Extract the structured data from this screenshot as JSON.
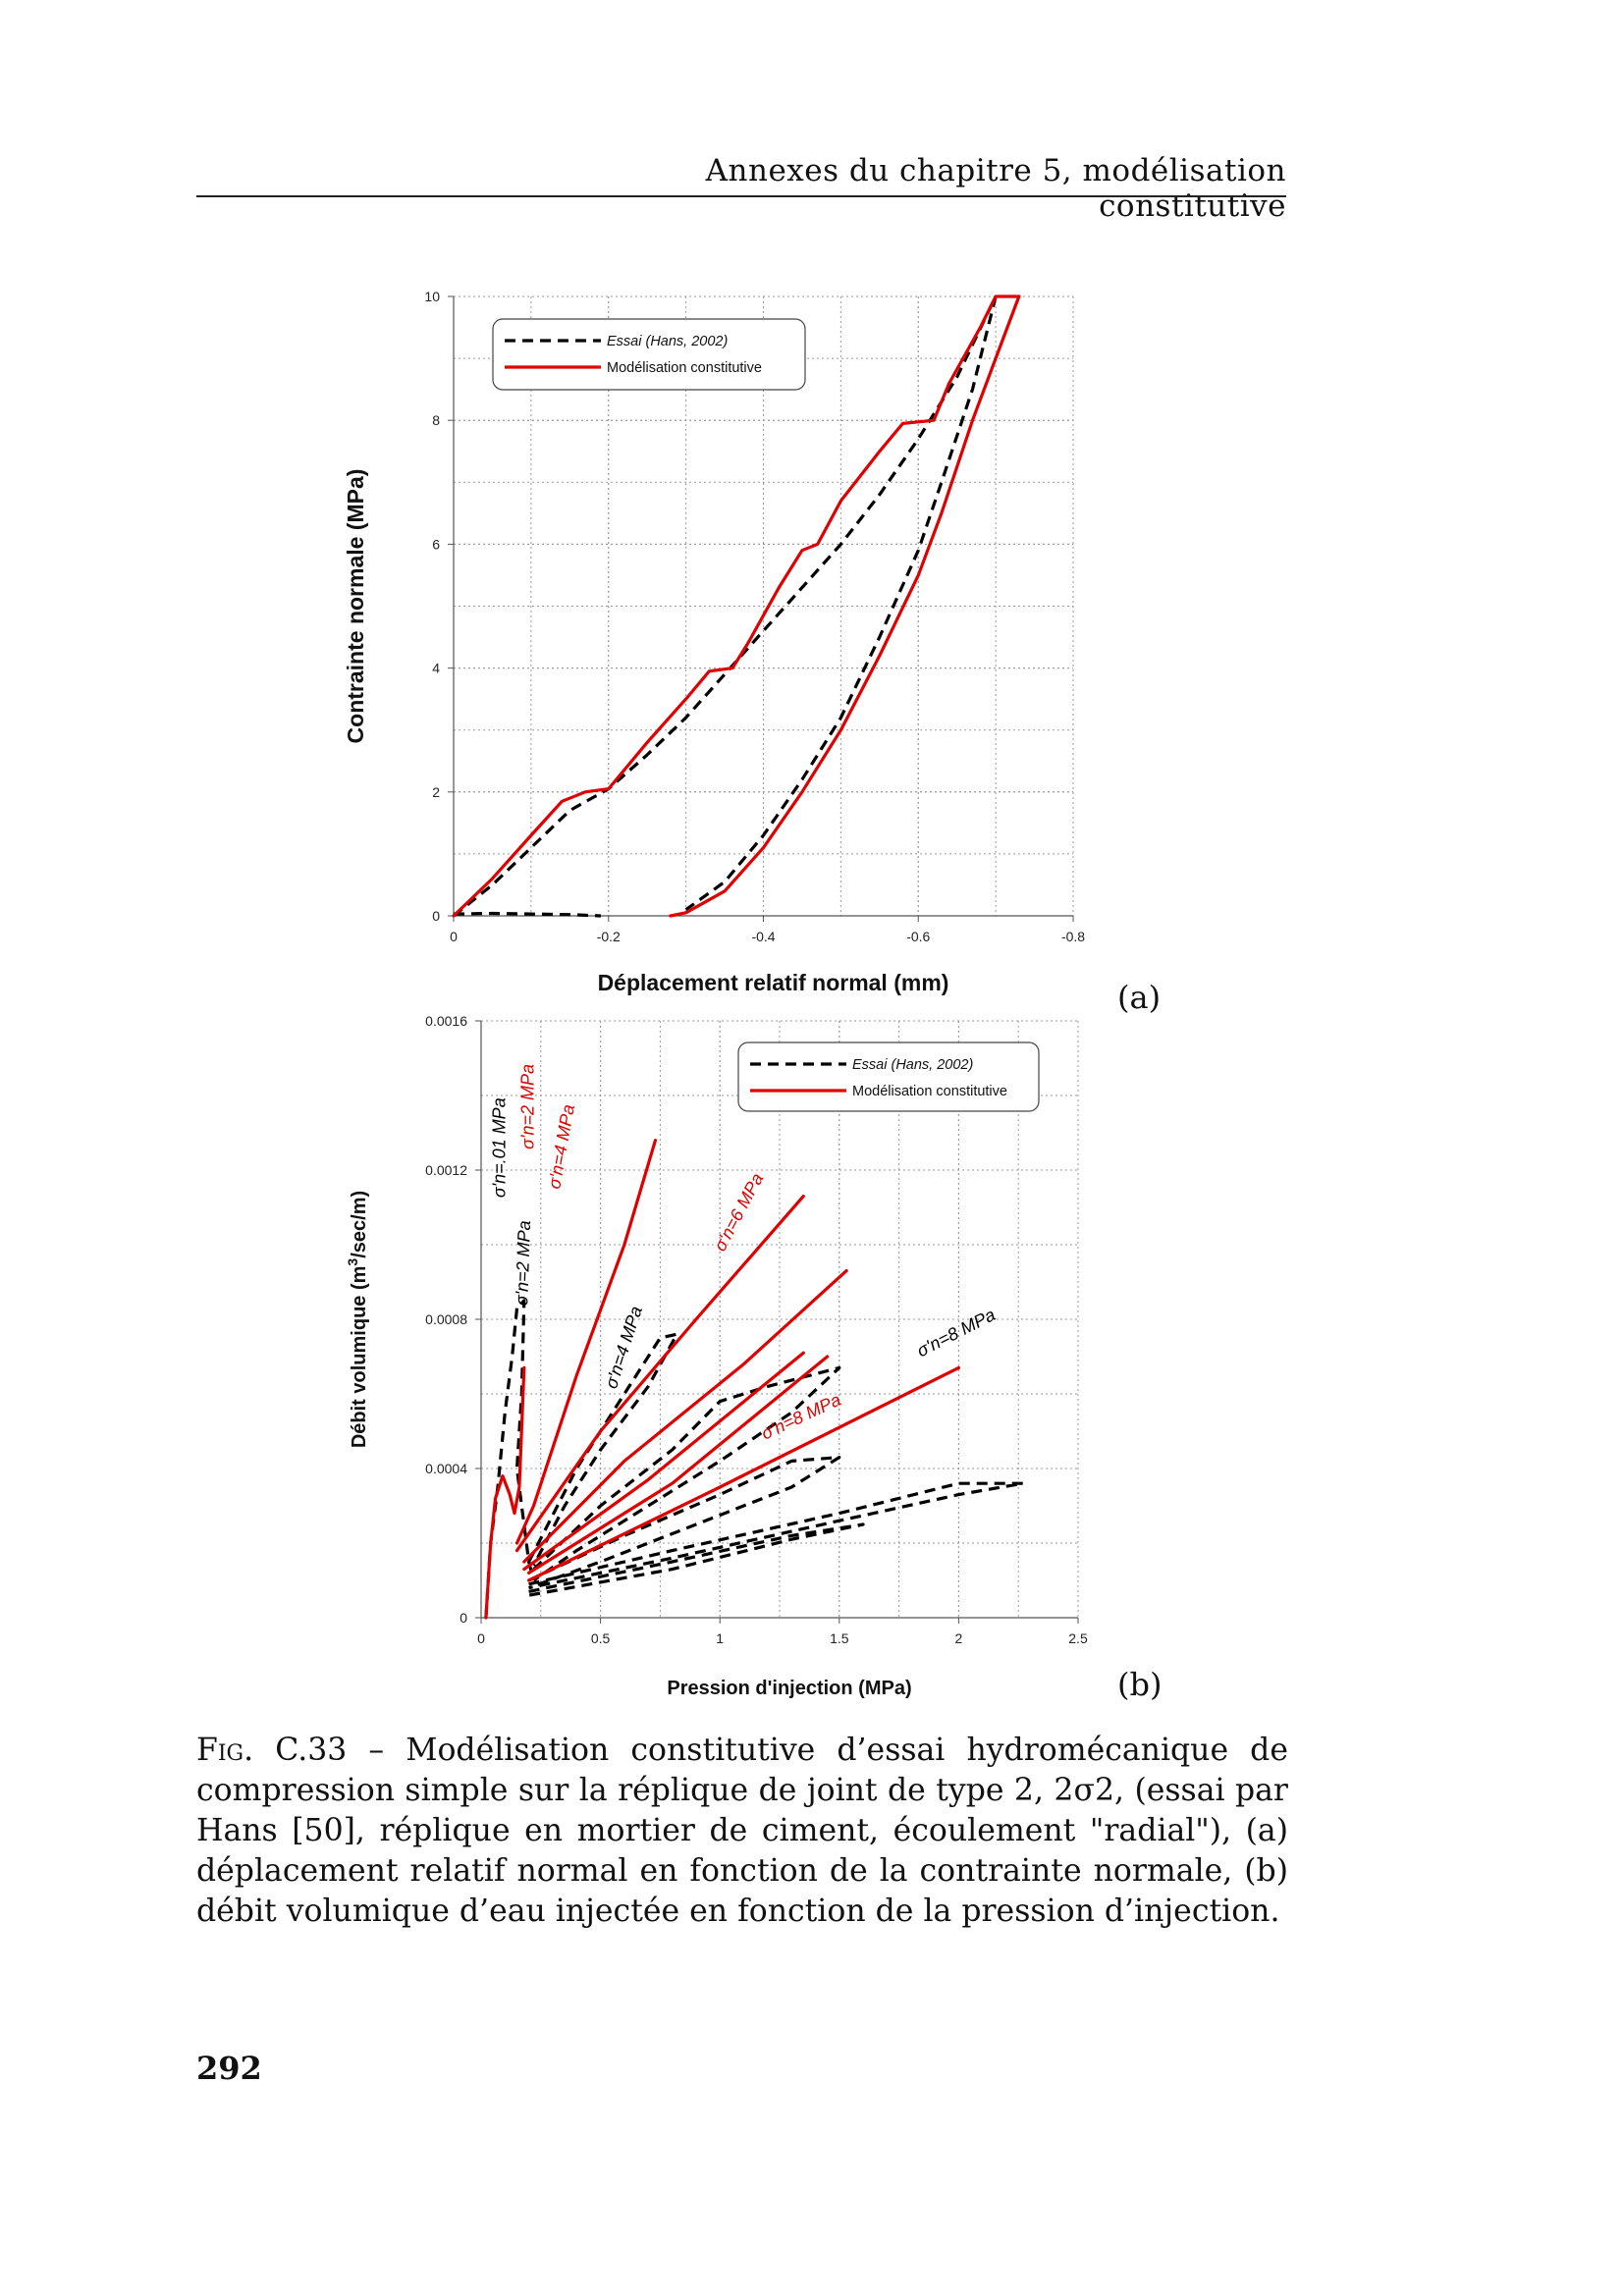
{
  "page": {
    "running_header": "Annexes du chapitre 5, modélisation constitutive",
    "page_number": "292",
    "caption_label": "Fig. C.33",
    "caption_text": " – Modélisation constitutive d’essai hydromécanique de compression simple sur la réplique de joint de type 2, 2σ2, (essai par Hans [50], réplique en mortier de ciment, écoulement \"radial\"), (a) déplacement relatif normal en fonction de la contrainte normale, (b) débit volumique d’eau injectée en fonction de la pression d’injection."
  },
  "colors": {
    "test": "#000000",
    "model": "#e00000",
    "grid": "#9a9a9a"
  },
  "chart_data": [
    {
      "type": "line",
      "panel_label": "(a)",
      "xlabel": "Déplacement relatif normal (mm)",
      "ylabel": "Contrainte normale (MPa)",
      "xlim": [
        0,
        -0.8
      ],
      "ylim": [
        0,
        10
      ],
      "xticks": [
        0,
        -0.2,
        -0.4,
        -0.6,
        -0.8
      ],
      "xtick_labels": [
        "0",
        "-0.2",
        "-0.4",
        "-0.6",
        "-0.8"
      ],
      "yticks": [
        0,
        2,
        4,
        6,
        8,
        10
      ],
      "ytick_labels": [
        "0",
        "2",
        "4",
        "6",
        "8",
        "10"
      ],
      "grid": true,
      "legend": {
        "position": "top-left",
        "entries": [
          "Essai (Hans, 2002)",
          "Modélisation constitutive"
        ]
      },
      "series": [
        {
          "name": "Essai (Hans, 2002)",
          "style": "dashed",
          "color": "#000000",
          "points": [
            [
              0,
              0
            ],
            [
              -0.05,
              0.5
            ],
            [
              -0.1,
              1.1
            ],
            [
              -0.15,
              1.7
            ],
            [
              -0.2,
              2.05
            ],
            [
              -0.25,
              2.6
            ],
            [
              -0.3,
              3.2
            ],
            [
              -0.35,
              3.9
            ],
            [
              -0.4,
              4.6
            ],
            [
              -0.45,
              5.3
            ],
            [
              -0.5,
              6.0
            ],
            [
              -0.55,
              6.8
            ],
            [
              -0.6,
              7.7
            ],
            [
              -0.65,
              8.7
            ],
            [
              -0.7,
              10.0
            ]
          ]
        },
        {
          "name": "",
          "style": "dashed",
          "color": "#000000",
          "points": [
            [
              -0.7,
              10.0
            ],
            [
              -0.67,
              8.5
            ],
            [
              -0.63,
              7.0
            ],
            [
              -0.6,
              5.9
            ],
            [
              -0.55,
              4.5
            ],
            [
              -0.5,
              3.2
            ],
            [
              -0.45,
              2.2
            ],
            [
              -0.4,
              1.3
            ],
            [
              -0.35,
              0.55
            ],
            [
              -0.3,
              0.1
            ]
          ]
        },
        {
          "name": "",
          "style": "dashed",
          "color": "#000000",
          "points": [
            [
              0,
              0.03
            ],
            [
              -0.05,
              0.04
            ],
            [
              -0.1,
              0.03
            ],
            [
              -0.15,
              0.02
            ],
            [
              -0.19,
              0.0
            ]
          ]
        },
        {
          "name": "Modélisation constitutive",
          "style": "solid",
          "color": "#e00000",
          "points": [
            [
              0,
              0
            ],
            [
              -0.05,
              0.6
            ],
            [
              -0.1,
              1.3
            ],
            [
              -0.14,
              1.85
            ],
            [
              -0.17,
              2.0
            ],
            [
              -0.2,
              2.05
            ],
            [
              -0.25,
              2.8
            ],
            [
              -0.3,
              3.5
            ],
            [
              -0.33,
              3.95
            ],
            [
              -0.36,
              4.0
            ],
            [
              -0.38,
              4.4
            ],
            [
              -0.42,
              5.3
            ],
            [
              -0.45,
              5.9
            ],
            [
              -0.47,
              6.0
            ],
            [
              -0.5,
              6.7
            ],
            [
              -0.55,
              7.5
            ],
            [
              -0.58,
              7.95
            ],
            [
              -0.62,
              8.0
            ],
            [
              -0.64,
              8.6
            ],
            [
              -0.68,
              9.5
            ],
            [
              -0.7,
              10.0
            ],
            [
              -0.73,
              10.0
            ]
          ]
        },
        {
          "name": "",
          "style": "solid",
          "color": "#e00000",
          "points": [
            [
              -0.73,
              10.0
            ],
            [
              -0.7,
              9.0
            ],
            [
              -0.67,
              8.0
            ],
            [
              -0.63,
              6.5
            ],
            [
              -0.6,
              5.5
            ],
            [
              -0.55,
              4.2
            ],
            [
              -0.5,
              3.0
            ],
            [
              -0.45,
              2.0
            ],
            [
              -0.4,
              1.1
            ],
            [
              -0.35,
              0.4
            ],
            [
              -0.3,
              0.05
            ],
            [
              -0.28,
              0.0
            ]
          ]
        }
      ]
    },
    {
      "type": "line",
      "panel_label": "(b)",
      "xlabel": "Pression d'injection (MPa)",
      "ylabel_parts": [
        "Débit volumique (m",
        "3",
        "/sec/m)"
      ],
      "xlim": [
        0,
        2.5
      ],
      "ylim": [
        0,
        0.0016
      ],
      "xticks": [
        0,
        0.5,
        1,
        1.5,
        2,
        2.5
      ],
      "xtick_labels": [
        "0",
        "0.5",
        "1",
        "1.5",
        "2",
        "2.5"
      ],
      "yticks": [
        0,
        0.0004,
        0.0008,
        0.0012,
        0.0016
      ],
      "ytick_labels": [
        "0",
        "0.0004",
        "0.0008",
        "0.0012",
        "0.0016"
      ],
      "grid": true,
      "legend": {
        "position": "top-right",
        "entries": [
          "Essai (Hans, 2002)",
          "Modélisation constitutive"
        ]
      },
      "annotations": [
        {
          "text": "σ'n=.01 MPa",
          "color": "#000000",
          "x": 0.1,
          "y": 0.00126,
          "angle": -90
        },
        {
          "text": "σ'n=2 MPa",
          "color": "#e00000",
          "x": 0.22,
          "y": 0.00137,
          "angle": -90
        },
        {
          "text": "σ'n=4 MPa",
          "color": "#e00000",
          "x": 0.36,
          "y": 0.00126,
          "angle": -80
        },
        {
          "text": "σ'n=2 MPa",
          "color": "#000000",
          "x": 0.2,
          "y": 0.00095,
          "angle": -88
        },
        {
          "text": "σ'n=4 MPa",
          "color": "#000000",
          "x": 0.62,
          "y": 0.00072,
          "angle": -72
        },
        {
          "text": "σ'n=6 MPa",
          "color": "#e00000",
          "x": 1.1,
          "y": 0.00108,
          "angle": -62
        },
        {
          "text": "σ'n=8 MPa",
          "color": "#e00000",
          "x": 1.35,
          "y": 0.000525,
          "angle": -25
        },
        {
          "text": "σ'n=8 MPa",
          "color": "#000000",
          "x": 2.0,
          "y": 0.00075,
          "angle": -27
        }
      ],
      "series": [
        {
          "name": "Essai (Hans, 2002)",
          "style": "dashed",
          "color": "#000000",
          "points": [
            [
              0.02,
              0.0
            ],
            [
              0.04,
              0.0002
            ],
            [
              0.07,
              0.00035
            ],
            [
              0.1,
              0.00055
            ],
            [
              0.13,
              0.0007
            ],
            [
              0.15,
              0.00083
            ],
            [
              0.18,
              0.00085
            ],
            [
              0.17,
              0.0006
            ],
            [
              0.15,
              0.0004
            ],
            [
              0.17,
              0.0003
            ],
            [
              0.2,
              0.00015
            ],
            [
              0.22,
              0.0001
            ]
          ]
        },
        {
          "name": "",
          "style": "dashed",
          "color": "#000000",
          "points": [
            [
              0.2,
              0.00015
            ],
            [
              0.4,
              0.0004
            ],
            [
              0.6,
              0.0006
            ],
            [
              0.75,
              0.00075
            ],
            [
              0.82,
              0.00076
            ],
            [
              0.7,
              0.00062
            ],
            [
              0.5,
              0.00045
            ],
            [
              0.35,
              0.0003
            ],
            [
              0.22,
              0.00014
            ]
          ]
        },
        {
          "name": "",
          "style": "dashed",
          "color": "#000000",
          "points": [
            [
              0.22,
              0.00013
            ],
            [
              0.5,
              0.0003
            ],
            [
              0.8,
              0.00045
            ],
            [
              1.0,
              0.00058
            ],
            [
              1.2,
              0.00062
            ],
            [
              1.5,
              0.00067
            ],
            [
              1.3,
              0.00055
            ],
            [
              1.0,
              0.00042
            ],
            [
              0.7,
              0.0003
            ],
            [
              0.4,
              0.00018
            ],
            [
              0.22,
              0.0001
            ]
          ]
        },
        {
          "name": "",
          "style": "dashed",
          "color": "#000000",
          "points": [
            [
              0.2,
              0.0001
            ],
            [
              0.6,
              0.00022
            ],
            [
              1.0,
              0.00033
            ],
            [
              1.3,
              0.00042
            ],
            [
              1.5,
              0.00043
            ],
            [
              1.3,
              0.00035
            ],
            [
              0.9,
              0.00025
            ],
            [
              0.5,
              0.00015
            ],
            [
              0.2,
              8e-05
            ]
          ]
        },
        {
          "name": "",
          "style": "dashed",
          "color": "#000000",
          "points": [
            [
              0.2,
              7e-05
            ],
            [
              0.8,
              0.00015
            ],
            [
              1.3,
              0.00022
            ],
            [
              1.6,
              0.00025
            ],
            [
              1.3,
              0.00021
            ],
            [
              0.8,
              0.00013
            ],
            [
              0.2,
              6e-05
            ]
          ]
        },
        {
          "name": "",
          "style": "dashed",
          "color": "#000000",
          "points": [
            [
              0.2,
              9e-05
            ],
            [
              0.8,
              0.00018
            ],
            [
              1.5,
              0.00028
            ],
            [
              2.0,
              0.00036
            ],
            [
              2.27,
              0.00036
            ],
            [
              2.0,
              0.00033
            ],
            [
              1.5,
              0.00026
            ],
            [
              0.8,
              0.00016
            ],
            [
              0.2,
              8e-05
            ]
          ]
        },
        {
          "name": "Modélisation constitutive",
          "style": "solid",
          "color": "#e00000",
          "points": [
            [
              0.02,
              0.0
            ],
            [
              0.04,
              0.0002
            ],
            [
              0.06,
              0.00032
            ],
            [
              0.09,
              0.00038
            ],
            [
              0.12,
              0.00033
            ],
            [
              0.14,
              0.00028
            ],
            [
              0.16,
              0.00035
            ],
            [
              0.18,
              0.00067
            ]
          ]
        },
        {
          "name": "",
          "style": "solid",
          "color": "#e00000",
          "points": [
            [
              0.15,
              0.0002
            ],
            [
              0.22,
              0.0003
            ],
            [
              0.4,
              0.00065
            ],
            [
              0.6,
              0.001
            ],
            [
              0.73,
              0.00128
            ]
          ]
        },
        {
          "name": "",
          "style": "solid",
          "color": "#e00000",
          "points": [
            [
              0.15,
              0.00018
            ],
            [
              0.5,
              0.0005
            ],
            [
              0.9,
              0.0008
            ],
            [
              1.35,
              0.00113
            ]
          ]
        },
        {
          "name": "",
          "style": "solid",
          "color": "#e00000",
          "points": [
            [
              0.18,
              0.00015
            ],
            [
              0.6,
              0.00042
            ],
            [
              1.1,
              0.00068
            ],
            [
              1.53,
              0.00093
            ]
          ]
        },
        {
          "name": "",
          "style": "solid",
          "color": "#e00000",
          "points": [
            [
              0.18,
              0.00013
            ],
            [
              0.7,
              0.00037
            ],
            [
              1.35,
              0.00071
            ]
          ]
        },
        {
          "name": "",
          "style": "solid",
          "color": "#e00000",
          "points": [
            [
              0.2,
              0.00012
            ],
            [
              0.8,
              0.00036
            ],
            [
              1.45,
              0.0007
            ]
          ]
        },
        {
          "name": "",
          "style": "solid",
          "color": "#e00000",
          "points": [
            [
              0.2,
              0.0001
            ],
            [
              1.0,
              0.00035
            ],
            [
              2.0,
              0.00067
            ]
          ]
        }
      ]
    }
  ]
}
